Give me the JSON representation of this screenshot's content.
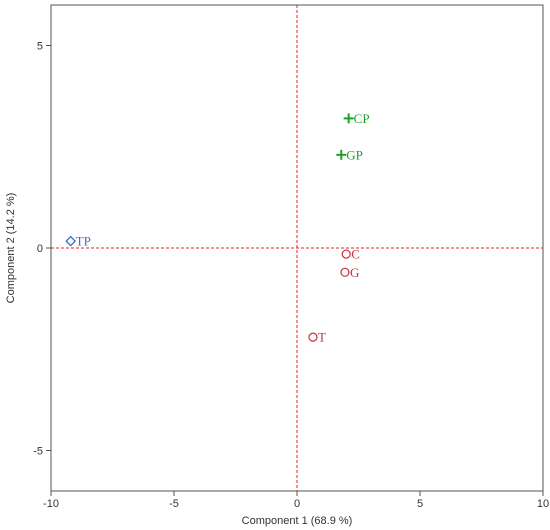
{
  "chart_data": {
    "type": "scatter",
    "xlabel": "Component 1  (68.9 %)",
    "ylabel": "Component 2  (14.2 %)",
    "xlim": [
      -10,
      10
    ],
    "ylim": [
      -6,
      6
    ],
    "x_ticks": [
      {
        "value": -10,
        "label": "-10"
      },
      {
        "value": -5,
        "label": "-5"
      },
      {
        "value": 0,
        "label": "0"
      },
      {
        "value": 5,
        "label": "5"
      },
      {
        "value": 10,
        "label": "10"
      }
    ],
    "y_ticks": [
      {
        "value": -5,
        "label": "-5"
      },
      {
        "value": 0,
        "label": "0"
      },
      {
        "value": 5,
        "label": "5"
      }
    ],
    "reference_lines": {
      "x": 0,
      "y": 0,
      "color": "#e8202a",
      "style": "dashed"
    },
    "grid": false,
    "points": [
      {
        "label": "CP",
        "x": 2.1,
        "y": 3.2,
        "marker": "plus",
        "color": "#1aa32a"
      },
      {
        "label": "GP",
        "x": 1.8,
        "y": 2.3,
        "marker": "plus",
        "color": "#1aa32a"
      },
      {
        "label": "TP",
        "x": -9.2,
        "y": 0.17,
        "marker": "diamond",
        "color": "#3a6fd0"
      },
      {
        "label": "C",
        "x": 2.0,
        "y": -0.15,
        "marker": "circle",
        "color": "#c9303a"
      },
      {
        "label": "G",
        "x": 1.95,
        "y": -0.6,
        "marker": "circle",
        "color": "#c9303a"
      },
      {
        "label": "T",
        "x": 0.65,
        "y": -2.2,
        "marker": "circle",
        "color": "#c9303a"
      }
    ]
  }
}
